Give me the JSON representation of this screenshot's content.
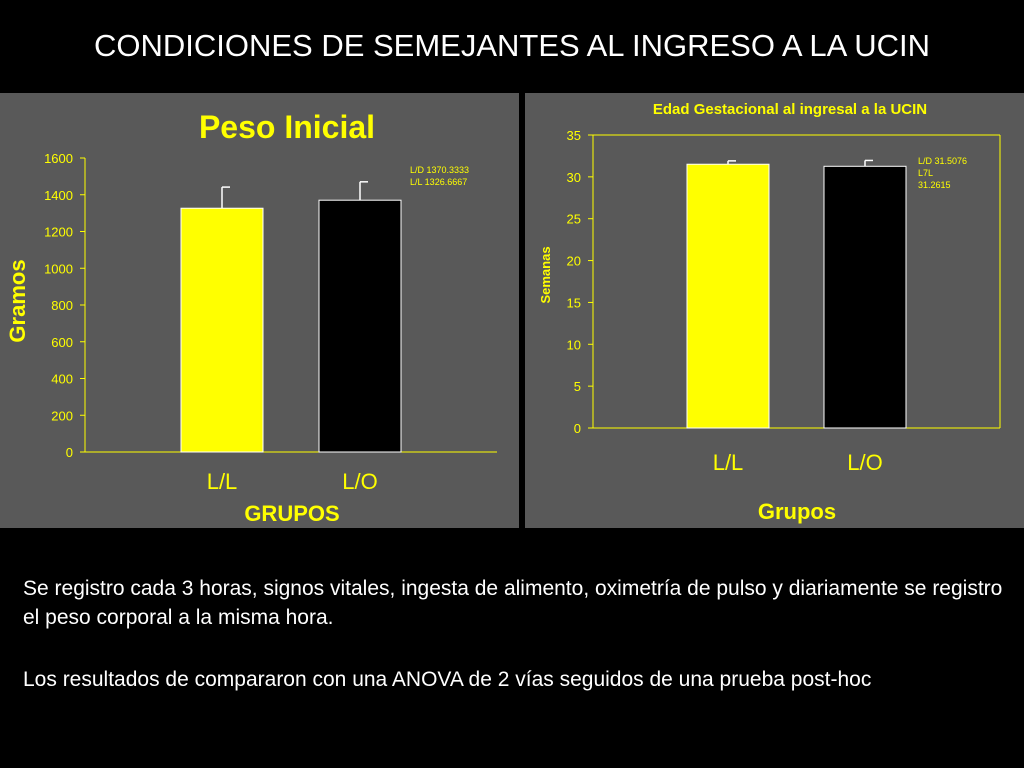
{
  "slide": {
    "title": "CONDICIONES DE SEMEJANTES AL INGRESO A LA UCIN",
    "paragraphs": [
      "Se registro cada 3 horas, signos vitales, ingesta de alimento, oximetría de pulso y diariamente se registro el peso corporal a la misma hora.",
      "Los resultados de compararon con una ANOVA de 2 vías seguidos de una prueba post-hoc"
    ]
  },
  "colors": {
    "panel_bg": "#595959",
    "axis_text": "#ffff00",
    "bar_ll": "#ffff00",
    "bar_lo": "#000000",
    "bar_stroke": "#ffffff",
    "axis_line": "#ffff00"
  },
  "chart_data": [
    {
      "type": "bar",
      "title": "Peso Inicial",
      "xlabel": "GRUPOS",
      "ylabel": "Gramos",
      "categories": [
        "L/L",
        "L/O"
      ],
      "values": [
        1326.6667,
        1370.3333
      ],
      "errors": [
        115,
        100
      ],
      "ylim": [
        0,
        1600
      ],
      "yticks": [
        0,
        200,
        400,
        600,
        800,
        1000,
        1200,
        1400,
        1600
      ],
      "annotation": [
        "L/D   1370.3333",
        "L/L   1326.6667"
      ],
      "legend_position": "top-right",
      "grid": false
    },
    {
      "type": "bar",
      "title": "Edad Gestacional al ingresal a la UCIN",
      "xlabel": "Grupos",
      "ylabel": "Semanas",
      "categories": [
        "L/L",
        "L/O"
      ],
      "values": [
        31.5076,
        31.2615
      ],
      "errors": [
        0.4,
        0.7
      ],
      "ylim": [
        0,
        35
      ],
      "yticks": [
        0,
        5,
        10,
        15,
        20,
        25,
        30,
        35
      ],
      "annotation": [
        "L/D   31.5076",
        "L7L",
        "31.2615"
      ],
      "legend_position": "top-right",
      "grid": false
    }
  ]
}
